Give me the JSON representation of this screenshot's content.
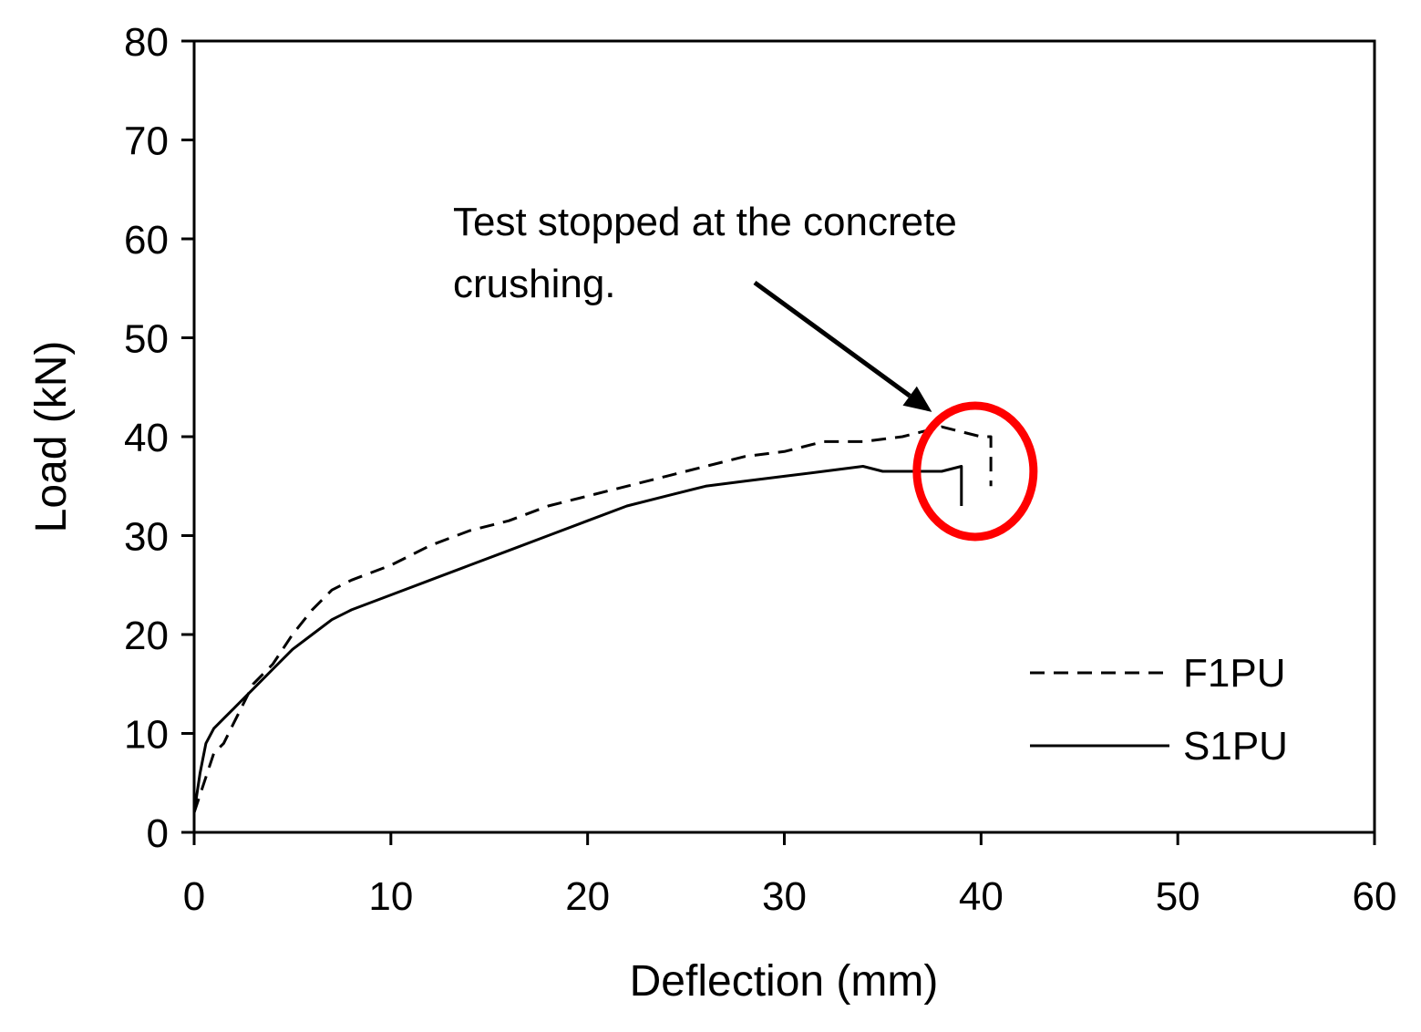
{
  "chart_data": {
    "type": "line",
    "title": "",
    "xlabel": "Deflection (mm)",
    "ylabel": "Load (kN)",
    "xlim": [
      0,
      60
    ],
    "ylim": [
      0,
      80
    ],
    "xticks": [
      0,
      10,
      20,
      30,
      40,
      50,
      60
    ],
    "yticks": [
      0,
      10,
      20,
      30,
      40,
      50,
      60,
      70,
      80
    ],
    "grid": false,
    "legend_position": "bottom-right",
    "series": [
      {
        "name": "F1PU",
        "style": "dashed",
        "color": "#000000",
        "x": [
          0,
          0.5,
          1,
          1.5,
          2,
          2.5,
          3,
          4,
          5,
          6,
          7,
          8,
          10,
          12,
          14,
          16,
          18,
          20,
          22,
          24,
          26,
          28,
          30,
          32,
          34,
          36,
          37,
          38,
          39,
          40,
          40.5,
          40.5
        ],
        "y": [
          2,
          5,
          8,
          9,
          11,
          13,
          15,
          17,
          20,
          22.5,
          24.5,
          25.5,
          27,
          29,
          30.5,
          31.5,
          33,
          34,
          35,
          36,
          37,
          38,
          38.5,
          39.5,
          39.5,
          40,
          40.5,
          41,
          40.5,
          40,
          40,
          35
        ]
      },
      {
        "name": "S1PU",
        "style": "solid",
        "color": "#000000",
        "x": [
          0,
          0.3,
          0.6,
          1,
          1.5,
          2,
          2.5,
          3,
          4,
          5,
          6,
          7,
          8,
          10,
          12,
          14,
          16,
          18,
          20,
          22,
          24,
          26,
          28,
          30,
          32,
          34,
          35,
          36,
          37,
          38,
          39,
          39,
          39
        ],
        "y": [
          2,
          6,
          9,
          10.5,
          11.5,
          12.5,
          13.5,
          14.5,
          16.5,
          18.5,
          20,
          21.5,
          22.5,
          24,
          25.5,
          27,
          28.5,
          30,
          31.5,
          33,
          34,
          35,
          35.5,
          36,
          36.5,
          37,
          36.5,
          36.5,
          36.5,
          36.5,
          37,
          36.5,
          33
        ]
      }
    ],
    "annotations": [
      {
        "lines": [
          "Test stopped at the concrete",
          "crushing."
        ],
        "arrow_to": [
          37.5,
          42.5
        ]
      }
    ],
    "highlight": {
      "shape": "circle",
      "center": [
        39.7,
        36.5
      ],
      "color": "#ff0000"
    }
  }
}
